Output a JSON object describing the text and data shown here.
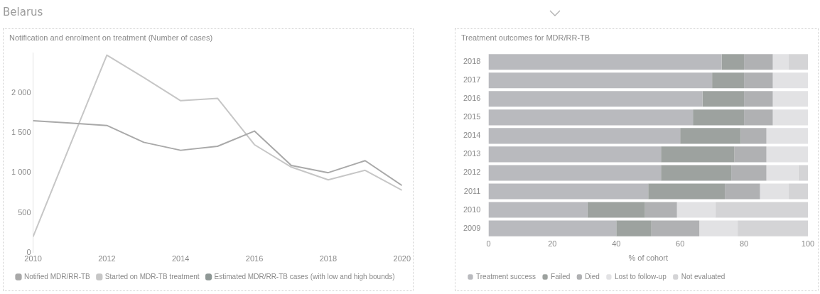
{
  "chart_data": [
    {
      "type": "line",
      "subtitle": "Belarus",
      "title": "Notification and enrolment on treatment (Number of cases)",
      "x": [
        2010,
        2011,
        2012,
        2013,
        2014,
        2015,
        2016,
        2017,
        2018,
        2019,
        2020
      ],
      "xlim": [
        2010,
        2020
      ],
      "xticks": [
        2010,
        2012,
        2014,
        2016,
        2018,
        2020
      ],
      "ylim": [
        0,
        2500
      ],
      "yticks": [
        0,
        {
          "value": 500,
          "label": "500"
        },
        {
          "value": 1000,
          "label": "1 000"
        },
        {
          "value": 1500,
          "label": "1 500"
        },
        {
          "value": 2000,
          "label": "2 000"
        }
      ],
      "marker": "none",
      "legend": "bottom",
      "series": [
        {
          "name": "Notified MDR/RR-TB",
          "color": "#a9a9a9",
          "values": [
            1650,
            1620,
            1590,
            1380,
            1280,
            1330,
            1520,
            1090,
            1000,
            1150,
            840
          ]
        },
        {
          "name": "Started on MDR-TB treatment",
          "color": "#c6c6c6",
          "values": [
            200,
            1340,
            2470,
            2190,
            1900,
            1930,
            1350,
            1070,
            910,
            1030,
            780
          ]
        },
        {
          "name": "Estimated MDR/RR-TB cases (with low and high bounds)",
          "color": "#8f9896",
          "values": [
            null,
            null,
            null,
            null,
            null,
            null,
            null,
            null,
            null,
            null,
            null
          ]
        }
      ]
    },
    {
      "type": "bar",
      "orientation": "horizontal",
      "stacked": true,
      "title": "Treatment outcomes for MDR/RR-TB",
      "xlabel": "% of cohort",
      "categories": [
        "2018",
        "2017",
        "2016",
        "2015",
        "2014",
        "2013",
        "2012",
        "2011",
        "2010",
        "2009"
      ],
      "xlim": [
        0,
        100
      ],
      "xticks": [
        0,
        20,
        40,
        60,
        80,
        100
      ],
      "legend": "bottom",
      "series": [
        {
          "name": "Treatment success",
          "color": "#b9babe",
          "values": [
            73,
            70,
            67,
            64,
            60,
            54,
            54,
            50,
            31,
            40
          ]
        },
        {
          "name": "Failed",
          "color": "#9da29f",
          "values": [
            7,
            10,
            13,
            16,
            19,
            23,
            22,
            24,
            18,
            11
          ]
        },
        {
          "name": "Died",
          "color": "#b0b1b3",
          "values": [
            9,
            9,
            9,
            9,
            8,
            10,
            11,
            11,
            10,
            15
          ]
        },
        {
          "name": "Lost to follow-up",
          "color": "#e2e2e4",
          "values": [
            5,
            11,
            11,
            11,
            13,
            13,
            10,
            9,
            12,
            12
          ]
        },
        {
          "name": "Not evaluated",
          "color": "#d4d4d6",
          "values": [
            6,
            0,
            0,
            0,
            0,
            0,
            3,
            6,
            29,
            22
          ]
        }
      ]
    }
  ]
}
